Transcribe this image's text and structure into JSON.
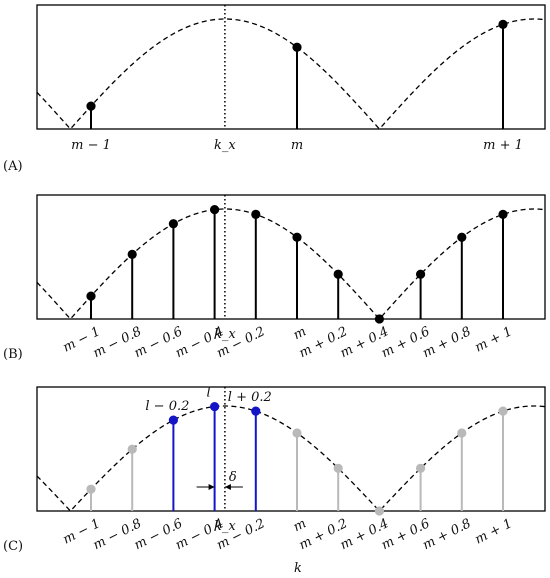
{
  "panels": [
    {
      "label": "(A)",
      "kx_label": "k_x",
      "ticks": [
        {
          "k": -1,
          "label": "m − 1"
        },
        {
          "k": 0,
          "label": "m"
        },
        {
          "k": 1,
          "label": "m + 1"
        }
      ],
      "samples": [
        {
          "k": -1,
          "color": "#000000"
        },
        {
          "k": 0,
          "color": "#000000"
        },
        {
          "k": 1,
          "color": "#000000"
        }
      ]
    },
    {
      "label": "(B)",
      "kx_label": "k_x",
      "ticks": [
        {
          "k": -1,
          "label": "m − 1"
        },
        {
          "k": -0.8,
          "label": "m − 0.8"
        },
        {
          "k": -0.6,
          "label": "m − 0.6"
        },
        {
          "k": -0.4,
          "label": "m − 0.4"
        },
        {
          "k": -0.2,
          "label": "m − 0.2"
        },
        {
          "k": 0,
          "label": "m"
        },
        {
          "k": 0.2,
          "label": "m + 0.2"
        },
        {
          "k": 0.4,
          "label": "m + 0.4"
        },
        {
          "k": 0.6,
          "label": "m + 0.6"
        },
        {
          "k": 0.8,
          "label": "m + 0.8"
        },
        {
          "k": 1,
          "label": "m + 1"
        }
      ],
      "samples": [
        {
          "k": -1,
          "color": "#000000"
        },
        {
          "k": -0.8,
          "color": "#000000"
        },
        {
          "k": -0.6,
          "color": "#000000"
        },
        {
          "k": -0.4,
          "color": "#000000"
        },
        {
          "k": -0.2,
          "color": "#000000"
        },
        {
          "k": 0,
          "color": "#000000"
        },
        {
          "k": 0.2,
          "color": "#000000"
        },
        {
          "k": 0.4,
          "color": "#000000"
        },
        {
          "k": 0.6,
          "color": "#000000"
        },
        {
          "k": 0.8,
          "color": "#000000"
        },
        {
          "k": 1,
          "color": "#000000"
        }
      ]
    },
    {
      "label": "(C)",
      "kx_label": "k_x",
      "axis_label": "k",
      "delta_label": "δ",
      "ticks": [
        {
          "k": -1,
          "label": "m − 1"
        },
        {
          "k": -0.8,
          "label": "m − 0.8"
        },
        {
          "k": -0.6,
          "label": "m − 0.6"
        },
        {
          "k": -0.4,
          "label": "m − 0.4"
        },
        {
          "k": -0.2,
          "label": "m − 0.2"
        },
        {
          "k": 0,
          "label": "m"
        },
        {
          "k": 0.2,
          "label": "m + 0.2"
        },
        {
          "k": 0.4,
          "label": "m + 0.4"
        },
        {
          "k": 0.6,
          "label": "m + 0.6"
        },
        {
          "k": 0.8,
          "label": "m + 0.8"
        },
        {
          "k": 1,
          "label": "m + 1"
        }
      ],
      "samples": [
        {
          "k": -1,
          "color": "#b9b9b9"
        },
        {
          "k": -0.8,
          "color": "#b9b9b9"
        },
        {
          "k": -0.6,
          "color": "#1515c8",
          "label": "l − 0.2"
        },
        {
          "k": -0.4,
          "color": "#1515c8",
          "label": "l"
        },
        {
          "k": -0.2,
          "color": "#1515c8",
          "label": "l + 0.2"
        },
        {
          "k": 0,
          "color": "#b9b9b9"
        },
        {
          "k": 0.2,
          "color": "#b9b9b9"
        },
        {
          "k": 0.4,
          "color": "#b9b9b9"
        },
        {
          "k": 0.6,
          "color": "#b9b9b9"
        },
        {
          "k": 0.8,
          "color": "#b9b9b9"
        },
        {
          "k": 1,
          "color": "#b9b9b9"
        }
      ]
    }
  ]
}
